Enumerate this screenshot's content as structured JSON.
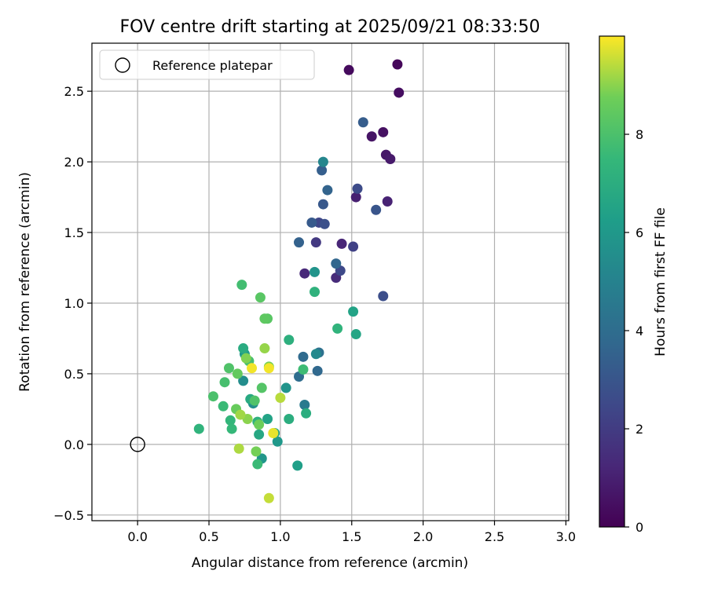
{
  "chart_data": {
    "type": "scatter",
    "title": "FOV centre drift starting at 2025/09/21 08:33:50",
    "xlabel": "Angular distance from reference (arcmin)",
    "ylabel": "Rotation from reference (arcmin)",
    "xlim": [
      -0.32,
      3.02
    ],
    "ylim": [
      -0.54,
      2.84
    ],
    "xticks": [
      0.0,
      0.5,
      1.0,
      1.5,
      2.0,
      2.5,
      3.0
    ],
    "xtick_labels": [
      "0.0",
      "0.5",
      "1.0",
      "1.5",
      "2.0",
      "2.5",
      "3.0"
    ],
    "yticks": [
      -0.5,
      0.0,
      0.5,
      1.0,
      1.5,
      2.0,
      2.5
    ],
    "ytick_labels": [
      "−0.5",
      "0.0",
      "0.5",
      "1.0",
      "1.5",
      "2.0",
      "2.5"
    ],
    "grid": true,
    "legend": {
      "position": "top-left",
      "entries": [
        "Reference platepar"
      ]
    },
    "reference_point": {
      "x": 0.0,
      "y": 0.0
    },
    "colorbar": {
      "label": "Hours from first FF file",
      "range": [
        0,
        10
      ],
      "ticks": [
        0,
        2,
        4,
        6,
        8
      ],
      "tick_labels": [
        "0",
        "2",
        "4",
        "6",
        "8"
      ],
      "colormap": "viridis"
    },
    "points": [
      {
        "x": 1.48,
        "y": 2.65,
        "h": 0.3
      },
      {
        "x": 1.82,
        "y": 2.69,
        "h": 0.2
      },
      {
        "x": 1.83,
        "y": 2.49,
        "h": 0.4
      },
      {
        "x": 1.72,
        "y": 2.21,
        "h": 0.5
      },
      {
        "x": 1.64,
        "y": 2.18,
        "h": 0.6
      },
      {
        "x": 1.74,
        "y": 2.05,
        "h": 0.7
      },
      {
        "x": 1.77,
        "y": 2.02,
        "h": 0.8
      },
      {
        "x": 1.53,
        "y": 1.75,
        "h": 1.0
      },
      {
        "x": 1.75,
        "y": 1.72,
        "h": 1.1
      },
      {
        "x": 1.43,
        "y": 1.42,
        "h": 1.2
      },
      {
        "x": 1.17,
        "y": 1.21,
        "h": 1.3
      },
      {
        "x": 1.39,
        "y": 1.18,
        "h": 1.4
      },
      {
        "x": 1.25,
        "y": 1.43,
        "h": 1.9
      },
      {
        "x": 1.51,
        "y": 1.4,
        "h": 2.2
      },
      {
        "x": 1.27,
        "y": 1.57,
        "h": 2.4
      },
      {
        "x": 1.54,
        "y": 1.81,
        "h": 2.6
      },
      {
        "x": 1.42,
        "y": 1.23,
        "h": 2.5
      },
      {
        "x": 1.72,
        "y": 1.05,
        "h": 2.7
      },
      {
        "x": 1.31,
        "y": 1.56,
        "h": 2.8
      },
      {
        "x": 1.67,
        "y": 1.66,
        "h": 3.0
      },
      {
        "x": 1.3,
        "y": 1.7,
        "h": 3.1
      },
      {
        "x": 1.22,
        "y": 1.57,
        "h": 3.2
      },
      {
        "x": 1.58,
        "y": 2.28,
        "h": 3.3
      },
      {
        "x": 1.13,
        "y": 1.43,
        "h": 3.5
      },
      {
        "x": 1.33,
        "y": 1.8,
        "h": 3.6
      },
      {
        "x": 1.29,
        "y": 1.94,
        "h": 3.4
      },
      {
        "x": 1.39,
        "y": 1.28,
        "h": 3.7
      },
      {
        "x": 1.26,
        "y": 0.52,
        "h": 3.8
      },
      {
        "x": 1.16,
        "y": 0.62,
        "h": 3.9
      },
      {
        "x": 1.13,
        "y": 0.48,
        "h": 4.0
      },
      {
        "x": 1.27,
        "y": 0.65,
        "h": 4.2
      },
      {
        "x": 1.17,
        "y": 0.28,
        "h": 4.6
      },
      {
        "x": 1.3,
        "y": 2.0,
        "h": 5.2
      },
      {
        "x": 1.25,
        "y": 0.64,
        "h": 5.3
      },
      {
        "x": 0.74,
        "y": 0.45,
        "h": 5.5
      },
      {
        "x": 0.81,
        "y": 0.29,
        "h": 5.6
      },
      {
        "x": 1.04,
        "y": 0.4,
        "h": 5.8
      },
      {
        "x": 0.87,
        "y": -0.1,
        "h": 5.9
      },
      {
        "x": 0.98,
        "y": 0.02,
        "h": 6.0
      },
      {
        "x": 1.24,
        "y": 1.22,
        "h": 5.8
      },
      {
        "x": 0.75,
        "y": 0.64,
        "h": 6.1
      },
      {
        "x": 1.12,
        "y": -0.15,
        "h": 6.3
      },
      {
        "x": 0.96,
        "y": 0.08,
        "h": 6.4
      },
      {
        "x": 0.91,
        "y": 0.18,
        "h": 6.5
      },
      {
        "x": 1.51,
        "y": 0.94,
        "h": 6.5
      },
      {
        "x": 1.53,
        "y": 0.78,
        "h": 6.6
      },
      {
        "x": 0.85,
        "y": 0.07,
        "h": 6.7
      },
      {
        "x": 0.79,
        "y": 0.32,
        "h": 6.8
      },
      {
        "x": 0.74,
        "y": 0.68,
        "h": 6.9
      },
      {
        "x": 1.18,
        "y": 0.22,
        "h": 7.0
      },
      {
        "x": 1.06,
        "y": 0.18,
        "h": 7.0
      },
      {
        "x": 1.06,
        "y": 0.74,
        "h": 7.1
      },
      {
        "x": 0.84,
        "y": 0.16,
        "h": 7.2
      },
      {
        "x": 1.24,
        "y": 1.08,
        "h": 7.2
      },
      {
        "x": 1.4,
        "y": 0.82,
        "h": 7.3
      },
      {
        "x": 0.43,
        "y": 0.11,
        "h": 7.3
      },
      {
        "x": 0.65,
        "y": 0.17,
        "h": 7.4
      },
      {
        "x": 0.66,
        "y": 0.11,
        "h": 7.5
      },
      {
        "x": 0.6,
        "y": 0.27,
        "h": 7.6
      },
      {
        "x": 0.84,
        "y": -0.14,
        "h": 7.6
      },
      {
        "x": 1.16,
        "y": 0.53,
        "h": 7.7
      },
      {
        "x": 0.73,
        "y": 1.13,
        "h": 7.8
      },
      {
        "x": 0.78,
        "y": 0.59,
        "h": 7.9
      },
      {
        "x": 0.61,
        "y": 0.44,
        "h": 7.9
      },
      {
        "x": 0.53,
        "y": 0.34,
        "h": 8.0
      },
      {
        "x": 0.64,
        "y": 0.54,
        "h": 8.1
      },
      {
        "x": 0.82,
        "y": 0.31,
        "h": 8.1
      },
      {
        "x": 0.87,
        "y": 0.4,
        "h": 8.2
      },
      {
        "x": 0.91,
        "y": 0.89,
        "h": 8.3
      },
      {
        "x": 0.86,
        "y": 1.04,
        "h": 8.3
      },
      {
        "x": 0.89,
        "y": 0.89,
        "h": 8.4
      },
      {
        "x": 0.7,
        "y": 0.5,
        "h": 8.5
      },
      {
        "x": 0.69,
        "y": 0.25,
        "h": 8.6
      },
      {
        "x": 0.85,
        "y": 0.14,
        "h": 8.7
      },
      {
        "x": 0.83,
        "y": -0.05,
        "h": 8.8
      },
      {
        "x": 0.92,
        "y": 0.55,
        "h": 8.8
      },
      {
        "x": 0.76,
        "y": 0.61,
        "h": 8.9
      },
      {
        "x": 0.77,
        "y": 0.18,
        "h": 9.0
      },
      {
        "x": 0.89,
        "y": 0.68,
        "h": 9.1
      },
      {
        "x": 0.72,
        "y": 0.21,
        "h": 9.2
      },
      {
        "x": 0.71,
        "y": -0.03,
        "h": 9.3
      },
      {
        "x": 1.0,
        "y": 0.33,
        "h": 9.4
      },
      {
        "x": 0.92,
        "y": -0.38,
        "h": 9.5
      },
      {
        "x": 0.95,
        "y": 0.08,
        "h": 9.8
      },
      {
        "x": 0.8,
        "y": 0.54,
        "h": 9.9
      },
      {
        "x": 0.92,
        "y": 0.54,
        "h": 9.9
      }
    ]
  }
}
